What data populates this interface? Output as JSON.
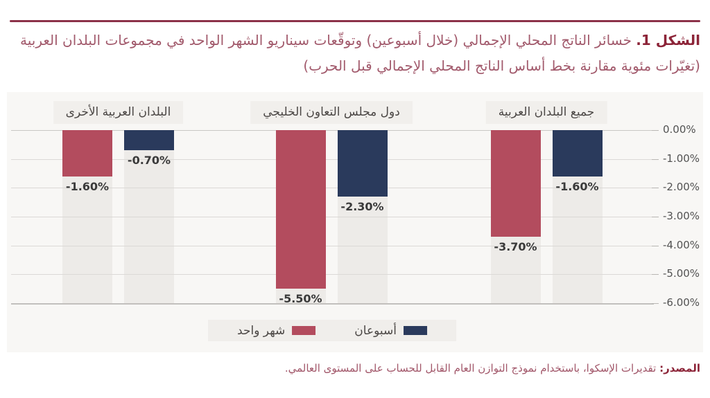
{
  "title": {
    "figure_label": "الشكل 1.",
    "text": " خسائر الناتج المحلي الإجمالي (خلال أسبوعين) وتوقّعات سيناريو الشهر الواحد في مجموعات البلدان العربية (تغيّرات مئوية مقارنة بخط أساس الناتج المحلي الإجمالي قبل الحرب)"
  },
  "source": {
    "label": "المصدر:",
    "text": " تقديرات الإسكوا، باستخدام نموذج التوازن العام القابل للحساب على المستوى العالمي."
  },
  "colors": {
    "accent_rule": "#8c3149",
    "title_bold": "#8c2438",
    "title_text": "#a25a6c",
    "two_weeks_bar": "#2a3a5c",
    "one_month_bar": "#b34c5e",
    "figure_background": "#f8f7f5",
    "column_strip": "#edebe8",
    "gridline": "#dbd9d6"
  },
  "chart_data": {
    "type": "bar",
    "direction": "rtl",
    "title": "",
    "xlabel": "",
    "ylabel": "",
    "categories": [
      "جميع البلدان العربية",
      "دول مجلس التعاون الخليجي",
      "البلدان العربية الأخرى"
    ],
    "series": [
      {
        "name": "أسبوعان",
        "key": "two-weeks",
        "color": "#2a3a5c",
        "values": [
          -1.6,
          -2.3,
          -0.7
        ],
        "labels": [
          "-1.60%",
          "-2.30%",
          "-0.70%"
        ]
      },
      {
        "name": "شهر واحد",
        "key": "one-month",
        "color": "#b34c5e",
        "values": [
          -3.7,
          -5.5,
          -1.6
        ],
        "labels": [
          "-3.70%",
          "-5.50%",
          "-1.60%"
        ]
      }
    ],
    "y_axis": {
      "min": -6,
      "max": 0,
      "tick_step": 1,
      "side": "right",
      "ticks": [
        "0.00%",
        "-1.00%",
        "-2.00%",
        "-3.00%",
        "-4.00%",
        "-5.00%",
        "-6.00%"
      ]
    },
    "legend": {
      "position": "bottom",
      "items": [
        {
          "label": "أسبوعان",
          "color": "#2a3a5c"
        },
        {
          "label": "شهر واحد",
          "color": "#b34c5e"
        }
      ]
    },
    "grid": true
  }
}
